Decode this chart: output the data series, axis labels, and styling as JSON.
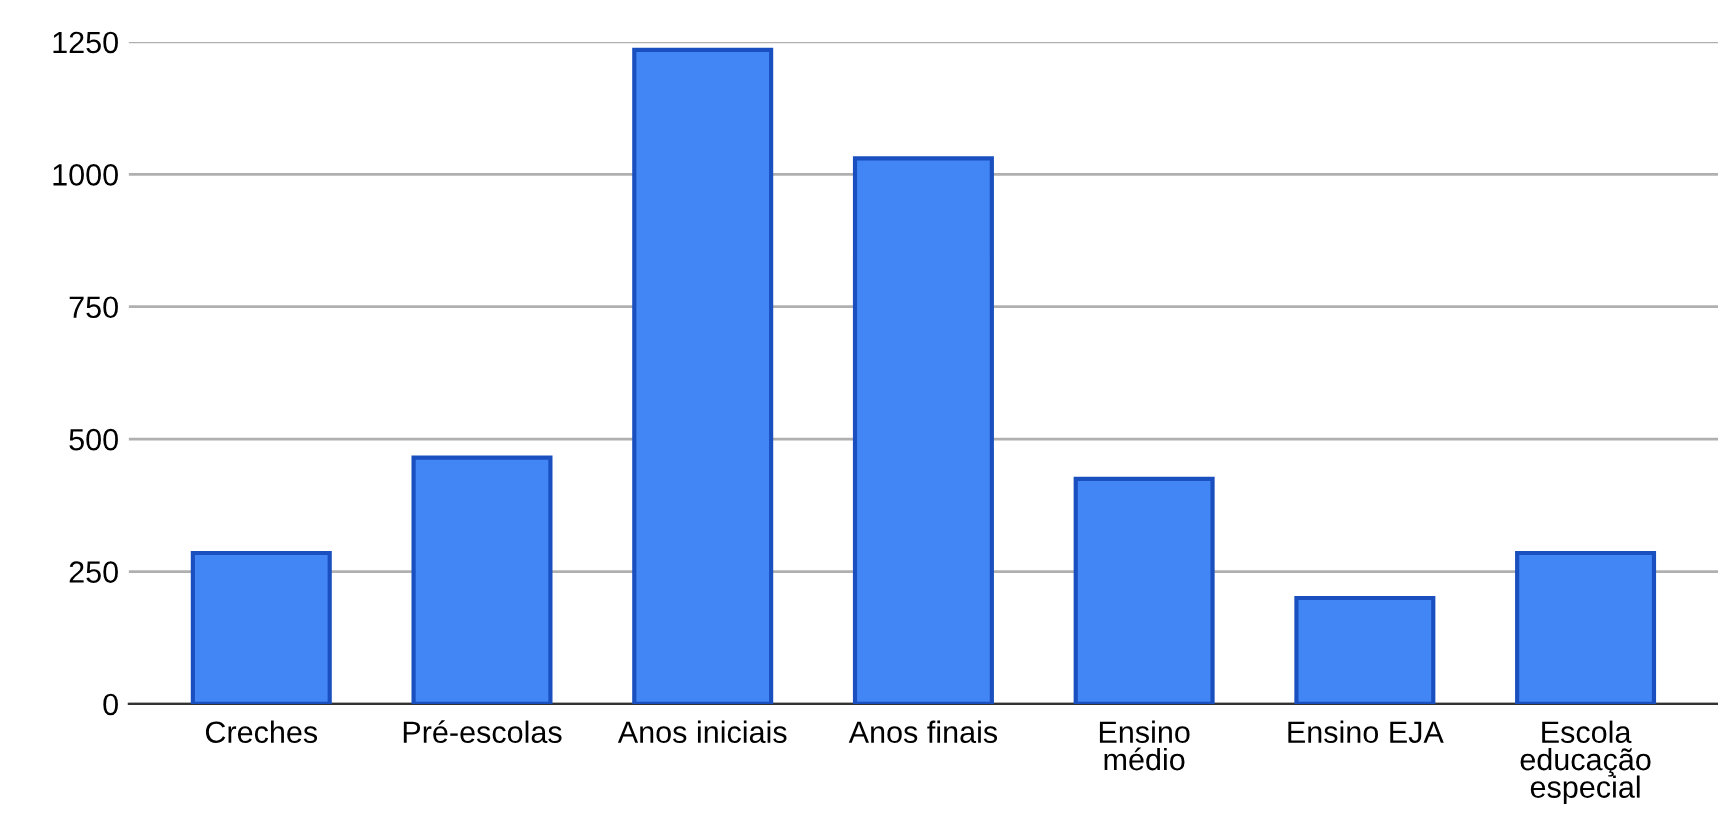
{
  "chart_data": {
    "type": "bar",
    "categories": [
      "Creches",
      "Pré-escolas",
      "Anos iniciais",
      "Anos finais",
      "Ensino\nmédio",
      "Ensino EJA",
      "Escola\neducação\nespecial"
    ],
    "values": [
      285,
      465,
      1235,
      1030,
      425,
      200,
      285
    ],
    "color": "#4285f4",
    "ylim": [
      0,
      1250
    ],
    "yticks": [
      0,
      250,
      500,
      750,
      1000,
      1250
    ],
    "grid": "y"
  }
}
